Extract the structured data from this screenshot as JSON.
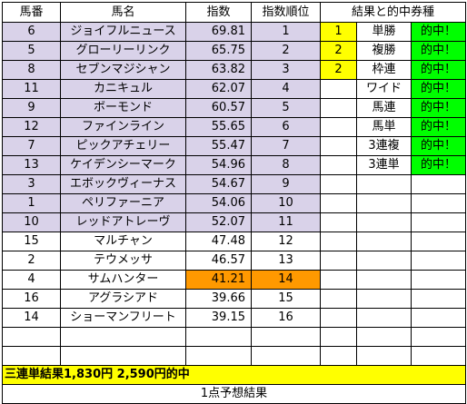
{
  "headers": [
    "馬番",
    "馬名",
    "指数",
    "指数順位",
    "結果と的中券種"
  ],
  "rows": [
    {
      "no": "6",
      "name": "ジョイフルニュース",
      "index": "69.81",
      "rank": "1"
    },
    {
      "no": "5",
      "name": "グローリーリンク",
      "index": "65.75",
      "rank": "2"
    },
    {
      "no": "8",
      "name": "セブンマジシャン",
      "index": "63.82",
      "rank": "3"
    },
    {
      "no": "11",
      "name": "カニキュル",
      "index": "62.07",
      "rank": "4"
    },
    {
      "no": "9",
      "name": "ボーモンド",
      "index": "60.57",
      "rank": "5"
    },
    {
      "no": "12",
      "name": "ファインライン",
      "index": "55.65",
      "rank": "6"
    },
    {
      "no": "7",
      "name": "ピックアチェリー",
      "index": "55.47",
      "rank": "7"
    },
    {
      "no": "13",
      "name": "ケイデンシーマーク",
      "index": "54.96",
      "rank": "8"
    },
    {
      "no": "3",
      "name": "エボックヴィーナス",
      "index": "54.67",
      "rank": "9"
    },
    {
      "no": "1",
      "name": "ペリファーニア",
      "index": "54.06",
      "rank": "10"
    },
    {
      "no": "10",
      "name": "レッドアトレーヴ",
      "index": "52.07",
      "rank": "11"
    },
    {
      "no": "15",
      "name": "マルチャン",
      "index": "47.48",
      "rank": "12"
    },
    {
      "no": "2",
      "name": "テウメッサ",
      "index": "46.57",
      "rank": "13"
    },
    {
      "no": "4",
      "name": "サムハンター",
      "index": "41.21",
      "rank": "14"
    },
    {
      "no": "16",
      "name": "アグラシアド",
      "index": "39.66",
      "rank": "15"
    },
    {
      "no": "14",
      "name": "ショーマンフリート",
      "index": "39.15",
      "rank": "16"
    }
  ],
  "results": [
    {
      "place": "1",
      "type": "単勝",
      "hit": "的中！"
    },
    {
      "place": "2",
      "type": "複勝",
      "hit": "的中！"
    },
    {
      "place": "2",
      "type": "枠連",
      "hit": "的中！"
    },
    {
      "place": "",
      "type": "ワイド",
      "hit": "的中！"
    },
    {
      "place": "",
      "type": "馬連",
      "hit": "的中！"
    },
    {
      "place": "",
      "type": "馬単",
      "hit": "的中！"
    },
    {
      "place": "",
      "type": "3連複",
      "hit": "的中！"
    },
    {
      "place": "",
      "type": "3連単",
      "hit": "的中！"
    }
  ],
  "summary": "三連単結果1,830円 2,590円的中",
  "footer": "1点予想結果",
  "colors": {
    "highlight_rows": "#d9d2e9",
    "low_index": "#ff9900",
    "place": "#ffff00",
    "hit": "#00ff00"
  }
}
